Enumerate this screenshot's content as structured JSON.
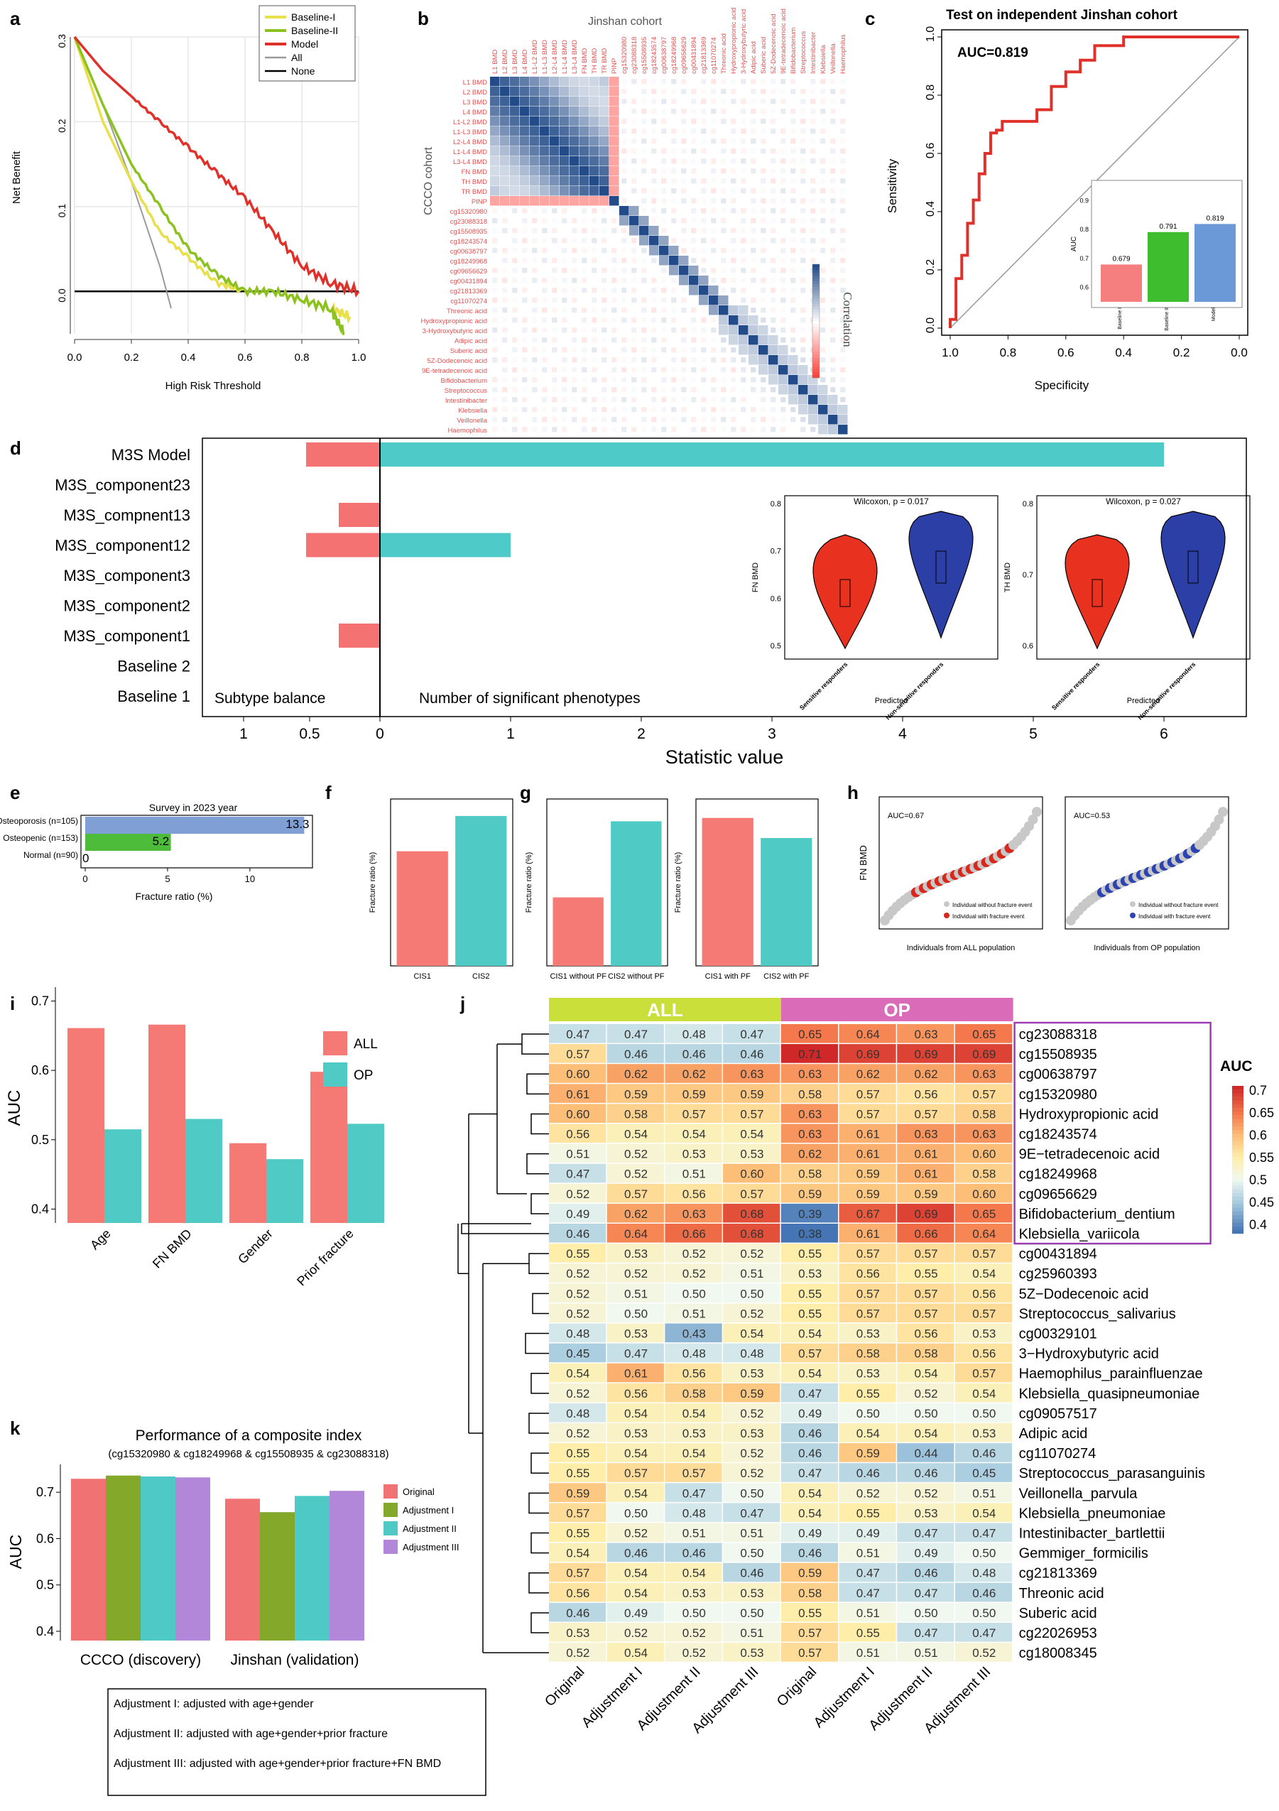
{
  "panels": {
    "a": {
      "label": "a",
      "xlabel": "High Risk Threshold",
      "ylabel": "Net Benefit",
      "xticks": [
        "0.0",
        "0.2",
        "0.4",
        "0.6",
        "0.8",
        "1.0"
      ],
      "yticks": [
        "0.0",
        "0.1",
        "0.2",
        "0.3"
      ],
      "legend": [
        {
          "name": "Baseline-I",
          "color": "#e8e04a"
        },
        {
          "name": "Baseline-II",
          "color": "#8cc21f"
        },
        {
          "name": "Model",
          "color": "#e0302a"
        },
        {
          "name": "All",
          "color": "#9a9a9a"
        },
        {
          "name": "None",
          "color": "#000000"
        }
      ]
    },
    "b": {
      "label": "b",
      "top_title": "Jinshan cohort",
      "side_title": "CCCO cohort",
      "colorbar_title": "Correlation",
      "row_labels": [
        "L1 BMD",
        "L2 BMD",
        "L3 BMD",
        "L4 BMD",
        "L1-L2 BMD",
        "L1-L3 BMD",
        "L2-L4 BMD",
        "L1-L4 BMD",
        "L3-L4 BMD",
        "FN BMD",
        "TH BMD",
        "TR BMD",
        "PINP",
        "cg15320980",
        "cg23088318",
        "cg15508935",
        "cg18243574",
        "cg00638797",
        "cg18249968",
        "cg09656629",
        "cg00431894",
        "cg21813369",
        "cg11070274",
        "Threonic acid",
        "Hydroxypropionic acid",
        "3-Hydroxybutyric acid",
        "Adipic acid",
        "Suberic acid",
        "5Z-Dodecenoic acid",
        "9E-tetradecenoic acid",
        "Bifidobacterium",
        "Streptococcus",
        "Intestinibacter",
        "Klebsiella",
        "Veillonella",
        "Haemophilus"
      ]
    },
    "c": {
      "label": "c",
      "title": "Test on independent Jinshan cohort",
      "auc_text": "AUC=0.819",
      "xlabel": "Specificity",
      "ylabel": "Sensitivity",
      "xticks": [
        "1.0",
        "0.8",
        "0.6",
        "0.4",
        "0.2",
        "0.0"
      ],
      "yticks": [
        "0.0",
        "0.2",
        "0.4",
        "0.6",
        "0.8",
        "1.0"
      ],
      "inset": {
        "ylabel": "AUC",
        "yticks": [
          "0.6",
          "0.7",
          "0.8",
          "0.9"
        ],
        "bars": [
          {
            "name": "Baseline I",
            "value": 0.679,
            "label": "0.679",
            "color": "#f57f7f"
          },
          {
            "name": "Baseline II",
            "value": 0.791,
            "label": "0.791",
            "color": "#3ebd2e"
          },
          {
            "name": "Model",
            "value": 0.819,
            "label": "0.819",
            "color": "#6b98d6"
          }
        ]
      }
    },
    "d": {
      "label": "d",
      "xlabel": "Statistic value",
      "left_note": "Subtype balance",
      "right_note": "Number of significant phenotypes",
      "xticks": [
        "1",
        "0.5",
        "0",
        "1",
        "2",
        "3",
        "4",
        "5",
        "6"
      ],
      "violin1": {
        "title": "Wilcoxon, p = 0.017",
        "ylabel": "FN BMD",
        "yticks": [
          "0.5",
          "0.6",
          "0.7",
          "0.8"
        ],
        "xlabel": "Predicted",
        "groups": [
          "Sensitive responders",
          "Non-sensitive responders"
        ]
      },
      "violin2": {
        "title": "Wilcoxon, p = 0.027",
        "ylabel": "TH BMD",
        "yticks": [
          "0.6",
          "0.7",
          "0.8"
        ],
        "xlabel": "Predicted",
        "groups": [
          "Sensitive responders",
          "Non-sensitive responders"
        ]
      }
    },
    "e": {
      "label": "e",
      "title": "Survey in 2023 year",
      "xlabel": "Fracture ratio (%)",
      "xticks": [
        "0",
        "5",
        "10"
      ]
    },
    "f": {
      "label": "f",
      "ylabel": "Fracture ratio (%)",
      "categories": [
        "CIS1",
        "CIS2"
      ]
    },
    "g": {
      "label": "g",
      "ylabel": "Fracture ratio (%)",
      "left_categories": [
        "CIS1 without PF",
        "CIS2 without PF"
      ],
      "right_categories": [
        "CIS1 with PF",
        "CIS2 with PF"
      ]
    },
    "h": {
      "label": "h",
      "ylabel": "FN BMD",
      "left": {
        "auc": "AUC=0.67",
        "xlabel": "Individuals from ALL population",
        "legend": [
          "Individual without fracture event",
          "Individual with fracture event"
        ]
      },
      "right": {
        "auc": "AUC=0.53",
        "xlabel": "Individuals from OP population",
        "legend": [
          "Individual without fracture event",
          "Individual with fracture event"
        ]
      }
    },
    "i": {
      "label": "i",
      "ylabel": "AUC",
      "yticks": [
        "0.4",
        "0.5",
        "0.6",
        "0.7"
      ],
      "legend": [
        "ALL",
        "OP"
      ]
    },
    "j": {
      "label": "j",
      "groups": [
        "ALL",
        "OP"
      ],
      "columns": [
        "Original",
        "Adjustment I",
        "Adjustment II",
        "Adjustment III",
        "Original",
        "Adjustment I",
        "Adjustment II",
        "Adjustment III"
      ],
      "legend_title": "AUC",
      "legend_ticks": [
        "0.7",
        "0.65",
        "0.6",
        "0.55",
        "0.5",
        "0.45",
        "0.4"
      ]
    },
    "k": {
      "label": "k",
      "title": "Performance of a composite index",
      "subtitle": "(cg15320980 & cg18249968 & cg15508935 & cg23088318)",
      "ylabel": "AUC",
      "yticks": [
        "0.4",
        "0.5",
        "0.6",
        "0.7"
      ],
      "notes": [
        "Adjustment I: adjusted with age+gender",
        "Adjustment II: adjusted with age+gender+prior fracture",
        "Adjustment III: adjusted with age+gender+prior fracture+FN BMD"
      ]
    }
  },
  "chart_data": [
    {
      "id": "a",
      "type": "line",
      "x_range": [
        0,
        1
      ],
      "y_range": [
        -0.05,
        0.3
      ],
      "series": [
        {
          "name": "Baseline-I",
          "x": [
            0,
            0.1,
            0.2,
            0.3,
            0.4,
            0.5,
            0.6,
            0.7,
            0.8,
            0.9,
            0.97
          ],
          "y": [
            0.3,
            0.2,
            0.13,
            0.07,
            0.04,
            0.01,
            0,
            0,
            -0.01,
            -0.02,
            -0.03
          ]
        },
        {
          "name": "Baseline-II",
          "x": [
            0,
            0.1,
            0.2,
            0.3,
            0.4,
            0.5,
            0.6,
            0.7,
            0.8,
            0.9,
            0.95
          ],
          "y": [
            0.3,
            0.22,
            0.15,
            0.1,
            0.05,
            0.02,
            0,
            0,
            -0.01,
            -0.02,
            -0.05
          ]
        },
        {
          "name": "Model",
          "x": [
            0,
            0.1,
            0.2,
            0.3,
            0.4,
            0.5,
            0.6,
            0.7,
            0.8,
            0.9,
            1.0
          ],
          "y": [
            0.3,
            0.26,
            0.23,
            0.2,
            0.17,
            0.14,
            0.11,
            0.07,
            0.03,
            0.01,
            0.0
          ]
        },
        {
          "name": "All",
          "x": [
            0,
            0.1,
            0.2,
            0.3,
            0.34
          ],
          "y": [
            0.3,
            0.22,
            0.13,
            0.03,
            -0.02
          ]
        },
        {
          "name": "None",
          "x": [
            0,
            1
          ],
          "y": [
            0,
            0
          ]
        }
      ]
    },
    {
      "id": "c",
      "type": "line",
      "name": "ROC",
      "x": [
        1.0,
        0.98,
        0.96,
        0.94,
        0.92,
        0.9,
        0.88,
        0.86,
        0.84,
        0.82,
        0.8,
        0.75,
        0.7,
        0.65,
        0.6,
        0.55,
        0.5,
        0.45,
        0.4,
        0.3,
        0.2,
        0.1,
        0.0
      ],
      "y": [
        0.0,
        0.03,
        0.17,
        0.25,
        0.36,
        0.44,
        0.53,
        0.6,
        0.67,
        0.68,
        0.71,
        0.71,
        0.71,
        0.75,
        0.83,
        0.88,
        0.92,
        0.97,
        0.97,
        1.0,
        1.0,
        1.0,
        1.0
      ]
    },
    {
      "id": "d",
      "type": "bar",
      "categories": [
        "M3S Model",
        "M3S_component23",
        "M3S_compnent13",
        "M3S_component12",
        "M3S_component3",
        "M3S_component2",
        "M3S_component1",
        "Baseline 2",
        "Baseline 1"
      ],
      "series": [
        {
          "name": "Subtype balance",
          "values": [
            0.52,
            0,
            0.29,
            0.52,
            0,
            0,
            0.29,
            0,
            0
          ]
        },
        {
          "name": "Number of significant phenotypes",
          "values": [
            6,
            0,
            0,
            1,
            0,
            0,
            0,
            0,
            0
          ]
        }
      ]
    },
    {
      "id": "e",
      "type": "bar",
      "categories": [
        "Osteoporosis (n=105)",
        "Osteopenic (n=153)",
        "Normal (n=90)"
      ],
      "values": [
        13.3,
        5.2,
        0
      ],
      "labels": [
        "13.3",
        "5.2",
        "0"
      ]
    },
    {
      "id": "f",
      "type": "bar",
      "categories": [
        "CIS1",
        "CIS2"
      ],
      "values": [
        10.4,
        13.6
      ]
    },
    {
      "id": "g",
      "type": "bar",
      "categories": [
        "CIS1 without PF",
        "CIS2 without PF",
        "CIS1 with PF",
        "CIS2 with PF"
      ],
      "values": [
        4.5,
        9.5,
        16.2,
        14.0
      ]
    },
    {
      "id": "i",
      "type": "bar",
      "categories": [
        "Age",
        "FN BMD",
        "Gender",
        "Prior fracture"
      ],
      "series": [
        {
          "name": "ALL",
          "values": [
            0.661,
            0.666,
            0.495,
            0.598
          ]
        },
        {
          "name": "OP",
          "values": [
            0.515,
            0.53,
            0.472,
            0.523
          ]
        }
      ],
      "ylim": [
        0.38,
        0.72
      ]
    },
    {
      "id": "j",
      "type": "heatmap",
      "rows": [
        "cg23088318",
        "cg15508935",
        "cg00638797",
        "cg15320980",
        "Hydroxypropionic acid",
        "cg18243574",
        "9E−tetradecenoic acid",
        "cg18249968",
        "cg09656629",
        "Bifidobacterium_dentium",
        "Klebsiella_variicola",
        "cg00431894",
        "cg25960393",
        "5Z−Dodecenoic acid",
        "Streptococcus_salivarius",
        "cg00329101",
        "3−Hydroxybutyric acid",
        "Haemophilus_parainfluenzae",
        "Klebsiella_quasipneumoniae",
        "cg09057517",
        "Adipic acid",
        "cg11070274",
        "Streptococcus_parasanguinis",
        "Veillonella_parvula",
        "Klebsiella_pneumoniae",
        "Intestinibacter_bartlettii",
        "Gemmiger_formicilis",
        "cg21813369",
        "Threonic acid",
        "Suberic acid",
        "cg22026953",
        "cg18008345"
      ],
      "values": [
        [
          "0.47",
          "0.47",
          "0.48",
          "0.47",
          "0.65",
          "0.64",
          "0.63",
          "0.65"
        ],
        [
          "0.57",
          "0.46",
          "0.46",
          "0.46",
          "0.71",
          "0.69",
          "0.69",
          "0.69"
        ],
        [
          "0.60",
          "0.62",
          "0.62",
          "0.63",
          "0.63",
          "0.62",
          "0.62",
          "0.63"
        ],
        [
          "0.61",
          "0.59",
          "0.59",
          "0.59",
          "0.58",
          "0.57",
          "0.56",
          "0.57"
        ],
        [
          "0.60",
          "0.58",
          "0.57",
          "0.57",
          "0.63",
          "0.57",
          "0.57",
          "0.58"
        ],
        [
          "0.56",
          "0.54",
          "0.54",
          "0.54",
          "0.63",
          "0.61",
          "0.63",
          "0.63"
        ],
        [
          "0.51",
          "0.52",
          "0.53",
          "0.53",
          "0.62",
          "0.61",
          "0.61",
          "0.60"
        ],
        [
          "0.47",
          "0.52",
          "0.51",
          "0.60",
          "0.58",
          "0.59",
          "0.61",
          "0.58"
        ],
        [
          "0.52",
          "0.57",
          "0.56",
          "0.57",
          "0.59",
          "0.59",
          "0.59",
          "0.60"
        ],
        [
          "0.49",
          "0.62",
          "0.63",
          "0.68",
          "0.39",
          "0.67",
          "0.69",
          "0.65"
        ],
        [
          "0.46",
          "0.64",
          "0.66",
          "0.68",
          "0.38",
          "0.61",
          "0.66",
          "0.64"
        ],
        [
          "0.55",
          "0.53",
          "0.52",
          "0.52",
          "0.55",
          "0.57",
          "0.57",
          "0.57"
        ],
        [
          "0.52",
          "0.52",
          "0.52",
          "0.51",
          "0.53",
          "0.56",
          "0.55",
          "0.54"
        ],
        [
          "0.52",
          "0.51",
          "0.50",
          "0.50",
          "0.55",
          "0.57",
          "0.57",
          "0.56"
        ],
        [
          "0.52",
          "0.50",
          "0.51",
          "0.52",
          "0.55",
          "0.57",
          "0.57",
          "0.57"
        ],
        [
          "0.48",
          "0.53",
          "0.43",
          "0.54",
          "0.54",
          "0.53",
          "0.56",
          "0.53"
        ],
        [
          "0.45",
          "0.47",
          "0.48",
          "0.48",
          "0.57",
          "0.58",
          "0.58",
          "0.56"
        ],
        [
          "0.54",
          "0.61",
          "0.56",
          "0.53",
          "0.54",
          "0.53",
          "0.54",
          "0.57"
        ],
        [
          "0.52",
          "0.56",
          "0.58",
          "0.59",
          "0.47",
          "0.55",
          "0.52",
          "0.54"
        ],
        [
          "0.48",
          "0.54",
          "0.54",
          "0.52",
          "0.49",
          "0.50",
          "0.50",
          "0.50"
        ],
        [
          "0.52",
          "0.53",
          "0.53",
          "0.53",
          "0.46",
          "0.54",
          "0.54",
          "0.53"
        ],
        [
          "0.55",
          "0.54",
          "0.54",
          "0.52",
          "0.46",
          "0.59",
          "0.44",
          "0.46"
        ],
        [
          "0.55",
          "0.57",
          "0.57",
          "0.52",
          "0.47",
          "0.46",
          "0.46",
          "0.45"
        ],
        [
          "0.59",
          "0.54",
          "0.47",
          "0.50",
          "0.54",
          "0.52",
          "0.52",
          "0.51"
        ],
        [
          "0.57",
          "0.50",
          "0.48",
          "0.47",
          "0.54",
          "0.55",
          "0.53",
          "0.54"
        ],
        [
          "0.55",
          "0.52",
          "0.51",
          "0.51",
          "0.49",
          "0.49",
          "0.47",
          "0.47"
        ],
        [
          "0.54",
          "0.46",
          "0.46",
          "0.50",
          "0.46",
          "0.51",
          "0.49",
          "0.50"
        ],
        [
          "0.57",
          "0.54",
          "0.54",
          "0.46",
          "0.59",
          "0.47",
          "0.46",
          "0.48"
        ],
        [
          "0.56",
          "0.54",
          "0.53",
          "0.53",
          "0.58",
          "0.47",
          "0.47",
          "0.46"
        ],
        [
          "0.46",
          "0.49",
          "0.50",
          "0.50",
          "0.55",
          "0.51",
          "0.50",
          "0.50"
        ],
        [
          "0.53",
          "0.52",
          "0.52",
          "0.51",
          "0.57",
          "0.55",
          "0.47",
          "0.47"
        ],
        [
          "0.52",
          "0.54",
          "0.52",
          "0.53",
          "0.57",
          "0.51",
          "0.51",
          "0.52"
        ]
      ]
    },
    {
      "id": "k",
      "type": "bar",
      "categories": [
        "CCCO (discovery)",
        "Jinshan (validation)"
      ],
      "series": [
        {
          "name": "Original",
          "values": [
            0.729,
            0.686
          ],
          "color": "#f07272"
        },
        {
          "name": "Adjustment I",
          "values": [
            0.736,
            0.657
          ],
          "color": "#84a92a"
        },
        {
          "name": "Adjustment II",
          "values": [
            0.734,
            0.692
          ],
          "color": "#4fc9c6"
        },
        {
          "name": "Adjustment III",
          "values": [
            0.732,
            0.703
          ],
          "color": "#b287d9"
        }
      ],
      "ylim": [
        0.38,
        0.76
      ]
    }
  ]
}
